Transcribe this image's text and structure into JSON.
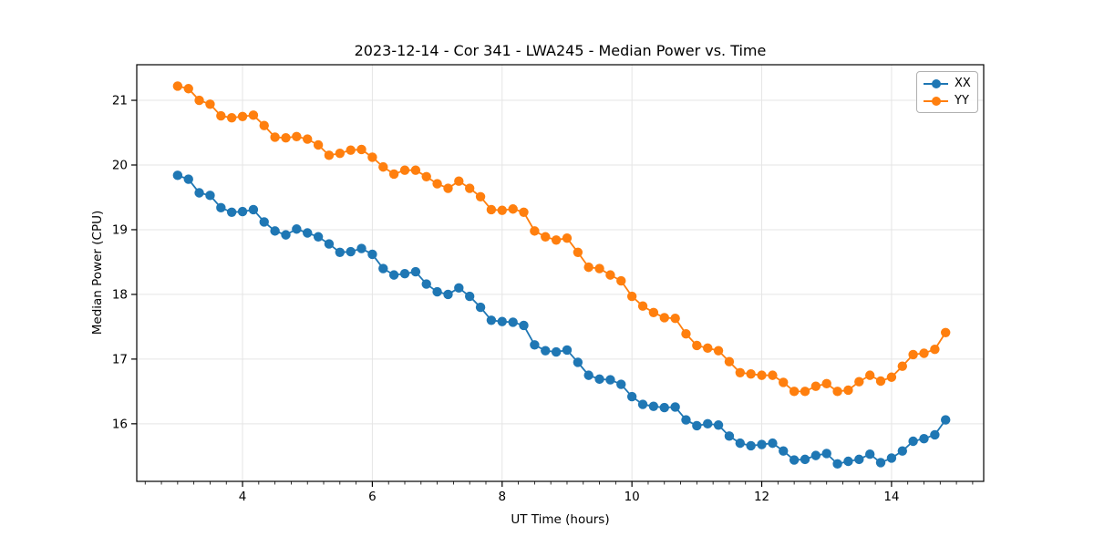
{
  "chart_data": {
    "type": "line",
    "title": "2023-12-14 - Cor 341 - LWA245 - Median Power vs. Time",
    "xlabel": "UT Time (hours)",
    "ylabel": "Median Power (CPU)",
    "xlim": [
      2.37,
      15.42
    ],
    "ylim": [
      15.11,
      21.55
    ],
    "x_ticks": [
      4,
      6,
      8,
      10,
      12,
      14
    ],
    "x_minor_tick_step": 0.25,
    "y_ticks": [
      16,
      17,
      18,
      19,
      20,
      21
    ],
    "grid": true,
    "grid_color": "#e5e5e5",
    "spine_color": "#000000",
    "legend_position": "upper right",
    "marker": "o",
    "x": [
      3,
      3.167,
      3.333,
      3.5,
      3.667,
      3.833,
      4,
      4.167,
      4.333,
      4.5,
      4.667,
      4.833,
      5,
      5.167,
      5.333,
      5.5,
      5.667,
      5.833,
      6,
      6.167,
      6.333,
      6.5,
      6.667,
      6.833,
      7,
      7.167,
      7.333,
      7.5,
      7.667,
      7.833,
      8,
      8.167,
      8.333,
      8.5,
      8.667,
      8.833,
      9,
      9.167,
      9.333,
      9.5,
      9.667,
      9.833,
      10,
      10.167,
      10.333,
      10.5,
      10.667,
      10.833,
      11,
      11.167,
      11.333,
      11.5,
      11.667,
      11.833,
      12,
      12.167,
      12.333,
      12.5,
      12.667,
      12.833,
      13,
      13.167,
      13.333,
      13.5,
      13.667,
      13.833,
      14,
      14.167,
      14.333,
      14.5,
      14.667,
      14.833
    ],
    "series": [
      {
        "name": "XX",
        "color": "#1f77b4",
        "values": [
          19.84,
          19.78,
          19.57,
          19.53,
          19.34,
          19.27,
          19.28,
          19.31,
          19.12,
          18.98,
          18.92,
          19.01,
          18.95,
          18.89,
          18.78,
          18.65,
          18.66,
          18.71,
          18.62,
          18.4,
          18.3,
          18.32,
          18.35,
          18.16,
          18.04,
          18.0,
          18.1,
          17.97,
          17.8,
          17.6,
          17.58,
          17.57,
          17.52,
          17.22,
          17.13,
          17.11,
          17.14,
          16.95,
          16.75,
          16.69,
          16.68,
          16.61,
          16.42,
          16.3,
          16.27,
          16.25,
          16.26,
          16.06,
          15.97,
          16.0,
          15.98,
          15.81,
          15.7,
          15.66,
          15.68,
          15.7,
          15.58,
          15.44,
          15.45,
          15.51,
          15.54,
          15.38,
          15.42,
          15.45,
          15.53,
          15.4,
          15.47,
          15.58,
          15.73,
          15.77,
          15.83,
          16.06
        ]
      },
      {
        "name": "YY",
        "color": "#ff7f0e",
        "values": [
          21.22,
          21.18,
          21.0,
          20.94,
          20.76,
          20.73,
          20.75,
          20.77,
          20.61,
          20.43,
          20.42,
          20.44,
          20.4,
          20.31,
          20.15,
          20.18,
          20.23,
          20.24,
          20.12,
          19.97,
          19.86,
          19.92,
          19.92,
          19.82,
          19.71,
          19.64,
          19.75,
          19.64,
          19.51,
          19.31,
          19.3,
          19.32,
          19.27,
          18.98,
          18.89,
          18.84,
          18.87,
          18.65,
          18.42,
          18.4,
          18.3,
          18.21,
          17.97,
          17.82,
          17.72,
          17.64,
          17.63,
          17.39,
          17.21,
          17.17,
          17.13,
          16.96,
          16.79,
          16.77,
          16.75,
          16.75,
          16.64,
          16.5,
          16.5,
          16.58,
          16.62,
          16.5,
          16.52,
          16.65,
          16.75,
          16.66,
          16.72,
          16.89,
          17.07,
          17.09,
          17.15,
          17.41
        ]
      }
    ]
  }
}
